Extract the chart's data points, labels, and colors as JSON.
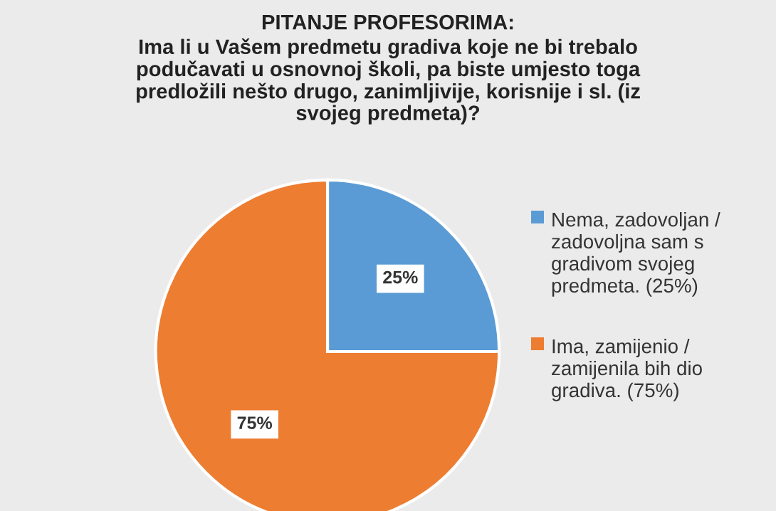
{
  "chart_data": {
    "type": "pie",
    "title": "PITANJE PROFESORIMA:",
    "subtitle": "Ima li u Vašem predmetu gradiva koje ne bi trebalo podučavati u osnovnoj školi, pa biste umjesto toga predložili nešto drugo, zanimljivije, korisnije i sl. (iz svojeg predmeta)?",
    "categories": [
      "Nema, zadovoljan / zadovoljna sam s gradivom svojeg predmeta. (25%)",
      "Ima, zamijenio / zamijenila bih dio gradiva. (75%)"
    ],
    "values": [
      25,
      75
    ],
    "value_labels": [
      "25%",
      "75%"
    ],
    "colors": [
      "#5b9bd5",
      "#ed7d31"
    ],
    "legend": "right"
  }
}
